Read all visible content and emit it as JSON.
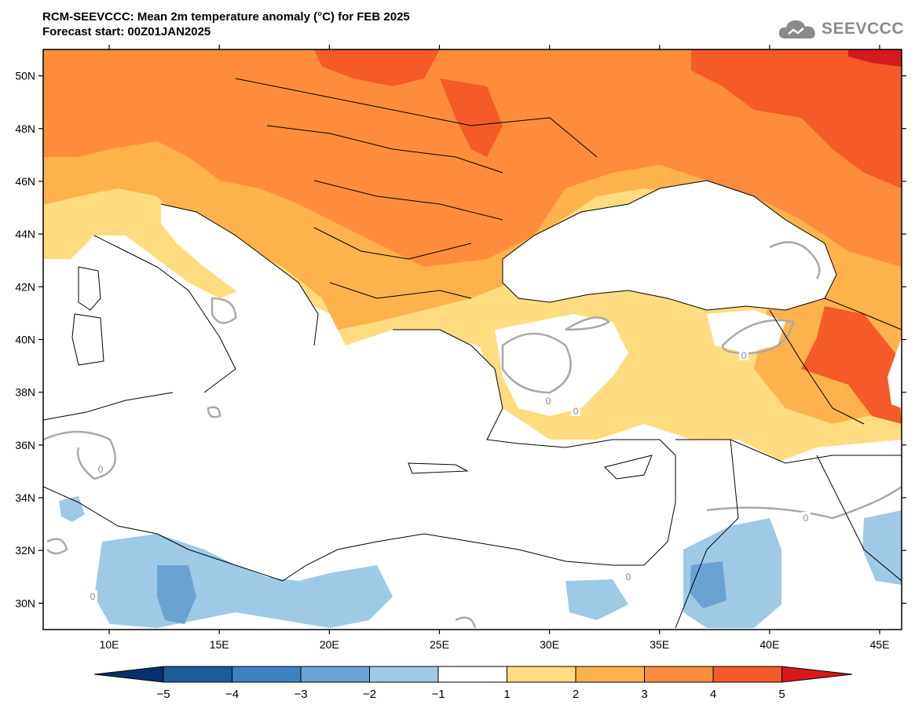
{
  "header": {
    "title_line1": "RCM-SEEVCCC: Mean 2m temperature anomaly (°C) for FEB 2025",
    "title_line2": "Forecast start: 00Z01JAN2025"
  },
  "logo": {
    "text": "SEEVCCC",
    "icon": "cloud-logo-icon"
  },
  "map": {
    "lat_labels": [
      {
        "lat": 50,
        "label": "50N"
      },
      {
        "lat": 48,
        "label": "48N"
      },
      {
        "lat": 46,
        "label": "46N"
      },
      {
        "lat": 44,
        "label": "44N"
      },
      {
        "lat": 42,
        "label": "42N"
      },
      {
        "lat": 40,
        "label": "40N"
      },
      {
        "lat": 38,
        "label": "38N"
      },
      {
        "lat": 36,
        "label": "36N"
      },
      {
        "lat": 34,
        "label": "34N"
      },
      {
        "lat": 32,
        "label": "32N"
      },
      {
        "lat": 30,
        "label": "30N"
      }
    ],
    "lon_labels": [
      {
        "lon": 10,
        "label": "10E"
      },
      {
        "lon": 15,
        "label": "15E"
      },
      {
        "lon": 20,
        "label": "20E"
      },
      {
        "lon": 25,
        "label": "25E"
      },
      {
        "lon": 30,
        "label": "30E"
      },
      {
        "lon": 35,
        "label": "35E"
      },
      {
        "lon": 40,
        "label": "40E"
      },
      {
        "lon": 45,
        "label": "45E"
      }
    ],
    "extent": {
      "lon_min": 7,
      "lon_max": 46,
      "lat_min": 29,
      "lat_max": 51
    },
    "contour_labels": [
      "0",
      "0",
      "0",
      "0",
      "0",
      "0",
      "0"
    ]
  },
  "colorbar": {
    "ticks": [
      "−5",
      "−4",
      "−3",
      "−2",
      "−1",
      "1",
      "2",
      "3",
      "4",
      "5"
    ],
    "colors": {
      "below_min": "#08306b",
      "bins": [
        "#1f5a99",
        "#3c82c2",
        "#69a3d3",
        "#9ecae6",
        "#ffffff",
        "#ffdc7f",
        "#feb24c",
        "#fd8d3c",
        "#f55a28"
      ],
      "above_max": "#d7191c"
    }
  }
}
